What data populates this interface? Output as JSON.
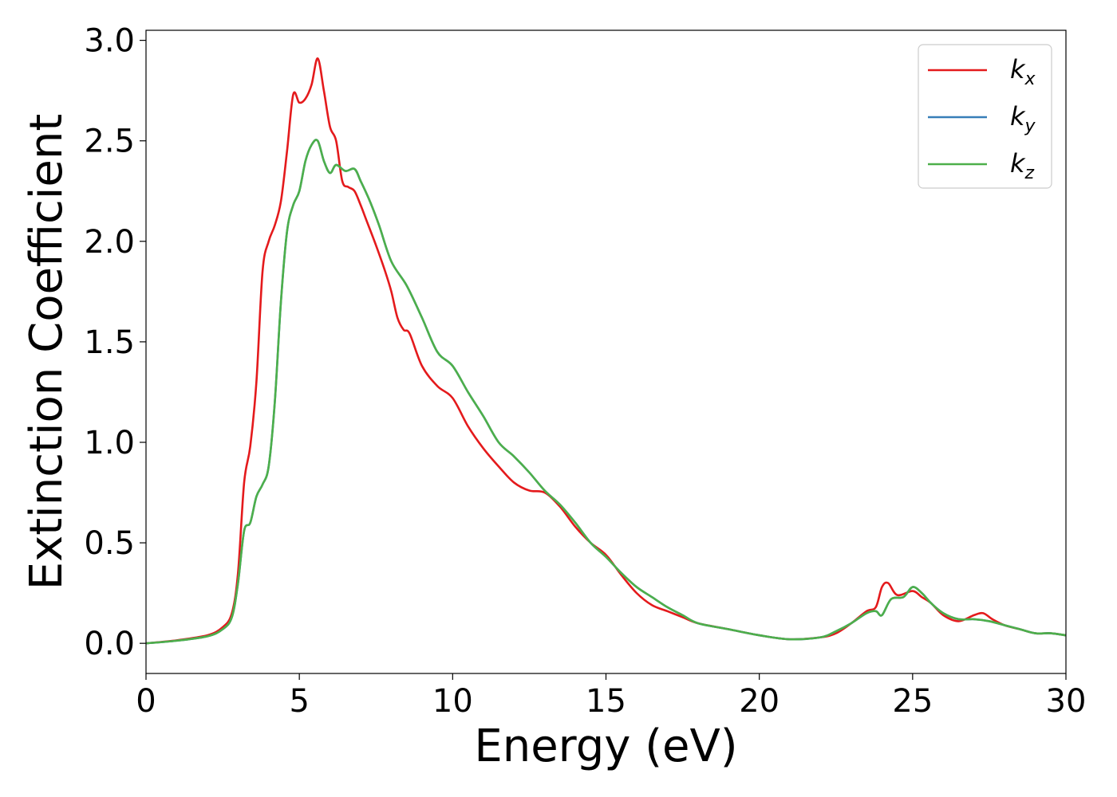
{
  "chart_data": {
    "type": "line",
    "title": "",
    "xlabel": "Energy (eV)",
    "ylabel": "Extinction Coefficient",
    "xlim": [
      0,
      30
    ],
    "ylim": [
      -0.15,
      3.05
    ],
    "xticks": [
      0,
      5,
      10,
      15,
      20,
      25,
      30
    ],
    "xtick_labels": [
      "0",
      "5",
      "10",
      "15",
      "20",
      "25",
      "30"
    ],
    "yticks": [
      0.0,
      0.5,
      1.0,
      1.5,
      2.0,
      2.5,
      3.0
    ],
    "ytick_labels": [
      "0.0",
      "0.5",
      "1.0",
      "1.5",
      "2.0",
      "2.5",
      "3.0"
    ],
    "grid": false,
    "legend_position": "top-right",
    "series": [
      {
        "name": "k_x",
        "legend_base": "k",
        "legend_sub": "x",
        "color": "#e41a1c",
        "x": [
          0,
          1,
          2,
          2.5,
          2.8,
          3.0,
          3.2,
          3.4,
          3.6,
          3.8,
          4.0,
          4.2,
          4.4,
          4.6,
          4.8,
          5.0,
          5.2,
          5.4,
          5.6,
          5.8,
          6.0,
          6.2,
          6.4,
          6.6,
          6.8,
          7.0,
          7.2,
          7.5,
          7.8,
          8.0,
          8.2,
          8.4,
          8.6,
          9.0,
          9.5,
          10.0,
          10.5,
          11.0,
          11.5,
          12.0,
          12.5,
          13.0,
          13.5,
          14.0,
          14.5,
          15.0,
          15.5,
          16.0,
          16.5,
          17.0,
          17.5,
          18.0,
          19.0,
          20.0,
          21.0,
          22.0,
          22.5,
          23.0,
          23.5,
          23.8,
          24.0,
          24.2,
          24.5,
          25.0,
          25.3,
          25.6,
          26.0,
          26.5,
          27.0,
          27.3,
          27.6,
          28.0,
          28.5,
          29.0,
          29.5,
          30.0
        ],
        "y": [
          0.0,
          0.015,
          0.04,
          0.08,
          0.15,
          0.35,
          0.8,
          0.98,
          1.3,
          1.85,
          2.0,
          2.08,
          2.2,
          2.45,
          2.73,
          2.69,
          2.71,
          2.78,
          2.91,
          2.75,
          2.57,
          2.5,
          2.3,
          2.27,
          2.25,
          2.18,
          2.1,
          1.98,
          1.85,
          1.75,
          1.62,
          1.56,
          1.54,
          1.38,
          1.28,
          1.22,
          1.08,
          0.97,
          0.88,
          0.8,
          0.76,
          0.75,
          0.68,
          0.58,
          0.5,
          0.44,
          0.34,
          0.25,
          0.19,
          0.16,
          0.13,
          0.1,
          0.07,
          0.04,
          0.02,
          0.03,
          0.05,
          0.1,
          0.16,
          0.18,
          0.28,
          0.3,
          0.24,
          0.26,
          0.23,
          0.2,
          0.14,
          0.11,
          0.14,
          0.15,
          0.12,
          0.09,
          0.07,
          0.05,
          0.05,
          0.04
        ]
      },
      {
        "name": "k_y",
        "legend_base": "k",
        "legend_sub": "y",
        "color": "#377eb8",
        "x": [
          0,
          1,
          2,
          2.5,
          2.8,
          3.0,
          3.2,
          3.4,
          3.6,
          3.8,
          4.0,
          4.2,
          4.4,
          4.6,
          4.8,
          5.0,
          5.2,
          5.4,
          5.6,
          5.8,
          6.0,
          6.2,
          6.5,
          6.8,
          7.0,
          7.3,
          7.6,
          8.0,
          8.5,
          9.0,
          9.5,
          10.0,
          10.5,
          11.0,
          11.5,
          12.0,
          12.5,
          13.0,
          13.5,
          14.0,
          14.5,
          15.0,
          15.5,
          16.0,
          16.5,
          17.0,
          17.5,
          18.0,
          19.0,
          20.0,
          21.0,
          22.0,
          22.5,
          23.0,
          23.5,
          23.8,
          24.0,
          24.3,
          24.7,
          25.0,
          25.3,
          25.6,
          26.0,
          26.5,
          27.0,
          27.5,
          28.0,
          28.5,
          29.0,
          29.5,
          30.0
        ],
        "y": [
          0.0,
          0.013,
          0.035,
          0.07,
          0.13,
          0.3,
          0.56,
          0.6,
          0.73,
          0.79,
          0.88,
          1.2,
          1.7,
          2.05,
          2.18,
          2.25,
          2.4,
          2.48,
          2.5,
          2.4,
          2.34,
          2.38,
          2.35,
          2.36,
          2.3,
          2.2,
          2.08,
          1.9,
          1.78,
          1.62,
          1.45,
          1.38,
          1.25,
          1.13,
          1.0,
          0.93,
          0.85,
          0.76,
          0.69,
          0.6,
          0.5,
          0.43,
          0.35,
          0.28,
          0.23,
          0.18,
          0.14,
          0.1,
          0.07,
          0.04,
          0.02,
          0.03,
          0.06,
          0.1,
          0.15,
          0.16,
          0.14,
          0.22,
          0.23,
          0.28,
          0.25,
          0.2,
          0.15,
          0.12,
          0.12,
          0.11,
          0.09,
          0.07,
          0.05,
          0.05,
          0.04
        ]
      },
      {
        "name": "k_z",
        "legend_base": "k",
        "legend_sub": "z",
        "color": "#4daf4a",
        "x": [
          0,
          1,
          2,
          2.5,
          2.8,
          3.0,
          3.2,
          3.4,
          3.6,
          3.8,
          4.0,
          4.2,
          4.4,
          4.6,
          4.8,
          5.0,
          5.2,
          5.4,
          5.6,
          5.8,
          6.0,
          6.2,
          6.5,
          6.8,
          7.0,
          7.3,
          7.6,
          8.0,
          8.5,
          9.0,
          9.5,
          10.0,
          10.5,
          11.0,
          11.5,
          12.0,
          12.5,
          13.0,
          13.5,
          14.0,
          14.5,
          15.0,
          15.5,
          16.0,
          16.5,
          17.0,
          17.5,
          18.0,
          19.0,
          20.0,
          21.0,
          22.0,
          22.5,
          23.0,
          23.5,
          23.8,
          24.0,
          24.3,
          24.7,
          25.0,
          25.3,
          25.6,
          26.0,
          26.5,
          27.0,
          27.5,
          28.0,
          28.5,
          29.0,
          29.5,
          30.0
        ],
        "y": [
          0.0,
          0.013,
          0.035,
          0.07,
          0.13,
          0.3,
          0.56,
          0.6,
          0.73,
          0.79,
          0.88,
          1.2,
          1.7,
          2.05,
          2.18,
          2.25,
          2.4,
          2.48,
          2.5,
          2.4,
          2.34,
          2.38,
          2.35,
          2.36,
          2.3,
          2.2,
          2.08,
          1.9,
          1.78,
          1.62,
          1.45,
          1.38,
          1.25,
          1.13,
          1.0,
          0.93,
          0.85,
          0.76,
          0.69,
          0.6,
          0.5,
          0.43,
          0.35,
          0.28,
          0.23,
          0.18,
          0.14,
          0.1,
          0.07,
          0.04,
          0.02,
          0.03,
          0.06,
          0.1,
          0.15,
          0.16,
          0.14,
          0.22,
          0.23,
          0.28,
          0.25,
          0.2,
          0.15,
          0.12,
          0.12,
          0.11,
          0.09,
          0.07,
          0.05,
          0.05,
          0.04
        ]
      }
    ]
  }
}
